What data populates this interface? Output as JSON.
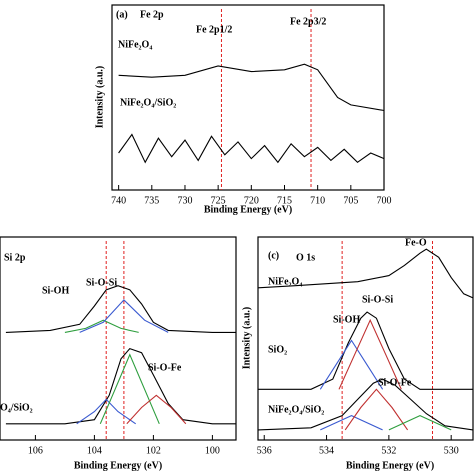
{
  "chart_data": [
    {
      "type": "line",
      "panel": "(a)",
      "title": "Fe 2p",
      "xlabel": "Binding Energy (eV)",
      "ylabel": "Intensity (a.u.)",
      "labels": [
        "NiFe₂O₄",
        "NiFe₂O₄/SiO₂",
        "Fe 2p1/2",
        "Fe 2p3/2"
      ],
      "xlim": [
        741,
        700
      ],
      "xticks": [
        740,
        735,
        730,
        725,
        720,
        715,
        710,
        705,
        700
      ],
      "ylim": [
        0,
        100
      ],
      "ref_lines": [
        724.5,
        711
      ],
      "series": [
        {
          "color": "#000000",
          "x": [
            740,
            735,
            730,
            725,
            720,
            715,
            712,
            710,
            707,
            705,
            700
          ],
          "values": [
            62,
            61,
            62,
            67,
            64,
            65,
            68,
            65,
            50,
            46,
            43
          ]
        },
        {
          "color": "#000000",
          "x": [
            740,
            738,
            736,
            734,
            732,
            730,
            728,
            726,
            724,
            722,
            720,
            718,
            716,
            714,
            712,
            710,
            708,
            706,
            704,
            702,
            700
          ],
          "values": [
            20,
            30,
            15,
            28,
            18,
            27,
            16,
            29,
            19,
            26,
            17,
            24,
            15,
            25,
            18,
            23,
            16,
            22,
            15,
            20,
            17
          ]
        }
      ]
    },
    {
      "type": "line",
      "title": "Si 2p",
      "xlabel": "Binding Energy (eV)",
      "labels": [
        "Si-OH",
        "Si-O-Si",
        "Si-O-Fe",
        "O₄/SiO₂"
      ],
      "xlim": [
        107.2,
        99.2
      ],
      "xticks": [
        106,
        104,
        102,
        100
      ],
      "ylim": [
        0,
        100
      ],
      "ref_lines": [
        103.6,
        103.0
      ],
      "series": [
        {
          "color": "#000000",
          "x": [
            107,
            105.5,
            104.5,
            104,
            103.6,
            103.2,
            102.8,
            102.4,
            102,
            101.5,
            100,
            99.2
          ],
          "values": [
            53,
            54,
            57,
            66,
            74,
            76,
            74,
            67,
            58,
            54,
            53,
            53
          ]
        },
        {
          "color": "#2e9e3e",
          "x": [
            105,
            104.3,
            103.7,
            103.1,
            102.5
          ],
          "values": [
            53,
            55,
            59,
            55,
            53
          ]
        },
        {
          "color": "#3a5ad0",
          "x": [
            104.5,
            103.7,
            103,
            102.3,
            101.5
          ],
          "values": [
            53,
            58,
            69,
            59,
            53
          ]
        },
        {
          "color": "#000000",
          "x": [
            107,
            105,
            104,
            103.5,
            103.1,
            102.8,
            102.4,
            102,
            101.5,
            101,
            100,
            99.2
          ],
          "values": [
            8,
            8,
            10,
            22,
            40,
            45,
            43,
            32,
            18,
            10,
            8,
            8
          ]
        },
        {
          "color": "#3a5ad0",
          "x": [
            104.6,
            104,
            103.6,
            103.2,
            102.6
          ],
          "values": [
            8,
            14,
            20,
            14,
            8
          ]
        },
        {
          "color": "#2e9e3e",
          "x": [
            103.8,
            103.3,
            102.8,
            102.3,
            101.8
          ],
          "values": [
            8,
            25,
            42,
            25,
            8
          ]
        },
        {
          "color": "#c03030",
          "x": [
            102.9,
            102.4,
            101.9,
            101.4,
            100.9
          ],
          "values": [
            8,
            16,
            22,
            16,
            8
          ]
        }
      ]
    },
    {
      "type": "line",
      "panel": "(c)",
      "title": "O 1s",
      "xlabel": "Binding Energy (eV)",
      "ylabel": "Intensity (a.u.)",
      "labels": [
        "Fe-O",
        "NiFe₂O₄",
        "Si-O-Si",
        "Si-OH",
        "SiO₂",
        "Si-O-Fe",
        "NiFe₂O₄/SiO₂"
      ],
      "xlim": [
        536.2,
        529.3
      ],
      "xticks": [
        536,
        534,
        532,
        530
      ],
      "ylim": [
        0,
        100
      ],
      "ref_lines": [
        533.5,
        530.6
      ],
      "series": [
        {
          "color": "#000000",
          "x": [
            536.2,
            535,
            534,
            533,
            532,
            531.5,
            531,
            530.8,
            530.4,
            530,
            529.6,
            529.3
          ],
          "values": [
            75,
            76,
            77,
            78,
            81,
            86,
            92,
            94,
            90,
            80,
            72,
            70
          ]
        },
        {
          "color": "#000000",
          "x": [
            536.2,
            534.5,
            533.8,
            533.3,
            532.9,
            532.7,
            532.4,
            532,
            531.5,
            531,
            529.3
          ],
          "values": [
            25,
            25,
            30,
            48,
            60,
            63,
            60,
            45,
            30,
            25,
            25
          ]
        },
        {
          "color": "#3a5ad0",
          "x": [
            534.2,
            533.7,
            533.2,
            532.7,
            532.2
          ],
          "values": [
            25,
            37,
            49,
            37,
            25
          ]
        },
        {
          "color": "#c03030",
          "x": [
            533.6,
            533.1,
            532.6,
            532.1,
            531.6
          ],
          "values": [
            25,
            42,
            59,
            42,
            25
          ]
        },
        {
          "color": "#000000",
          "x": [
            536.2,
            534.5,
            533.5,
            533,
            532.5,
            532.2,
            531.8,
            531.3,
            530.8,
            530.2,
            529.3
          ],
          "values": [
            5,
            6,
            12,
            20,
            28,
            30,
            27,
            20,
            13,
            7,
            5
          ]
        },
        {
          "color": "#3a5ad0",
          "x": [
            534.2,
            533.2,
            532.2
          ],
          "values": [
            5,
            12,
            5
          ]
        },
        {
          "color": "#c03030",
          "x": [
            533.4,
            532.9,
            532.4,
            531.9,
            531.4
          ],
          "values": [
            5,
            16,
            25,
            16,
            5
          ]
        },
        {
          "color": "#2e9e3e",
          "x": [
            532,
            531,
            530
          ],
          "values": [
            5,
            12,
            5
          ]
        }
      ]
    }
  ]
}
